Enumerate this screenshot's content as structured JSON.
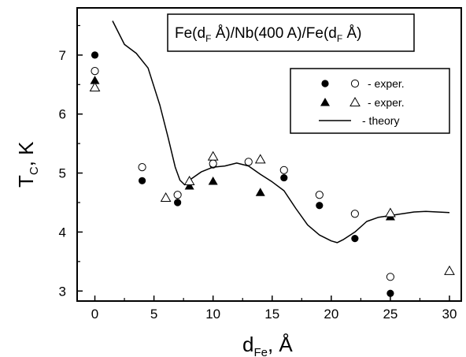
{
  "chart_data": {
    "type": "scatter",
    "title_parts": [
      "Fe(d",
      "F",
      " Å)/Nb(400 A)/Fe(d",
      "F",
      " Å)"
    ],
    "xlabel_parts": [
      "d",
      "Fe",
      ", Å"
    ],
    "ylabel_parts": [
      "T",
      "C",
      ", K"
    ],
    "xlim": [
      -1.5,
      31
    ],
    "ylim": [
      2.83,
      7.8
    ],
    "xticks": [
      0,
      5,
      10,
      15,
      20,
      25,
      30
    ],
    "yticks": [
      3,
      4,
      5,
      6,
      7
    ],
    "legend_position": "top-right",
    "legend": [
      {
        "symbols": [
          "filled-circle",
          "open-circle"
        ],
        "label": "- exper."
      },
      {
        "symbols": [
          "filled-triangle",
          "open-triangle"
        ],
        "label": "- exper."
      },
      {
        "symbols": [
          "line"
        ],
        "label": "-  theory"
      }
    ],
    "series": [
      {
        "marker": "filled-circle",
        "x": [
          0,
          4,
          7,
          10,
          13,
          16,
          19,
          22,
          25
        ],
        "y": [
          7.0,
          4.87,
          4.5,
          5.14,
          5.19,
          4.92,
          4.45,
          3.89,
          2.96
        ]
      },
      {
        "marker": "open-circle",
        "x": [
          0,
          4,
          7,
          10,
          13,
          16,
          19,
          22,
          25
        ],
        "y": [
          6.73,
          5.1,
          4.63,
          5.16,
          5.19,
          5.05,
          4.63,
          4.31,
          3.24
        ]
      },
      {
        "marker": "filled-triangle",
        "x": [
          0,
          8,
          10,
          14,
          25
        ],
        "y": [
          6.57,
          4.78,
          4.86,
          4.67,
          4.26
        ]
      },
      {
        "marker": "open-triangle",
        "x": [
          0,
          6,
          8,
          10,
          14,
          25,
          30
        ],
        "y": [
          6.45,
          4.58,
          4.86,
          5.28,
          5.23,
          4.32,
          3.34
        ]
      },
      {
        "marker": "line",
        "x": [
          1.5,
          2.5,
          3.5,
          4.5,
          5.5,
          6.2,
          6.8,
          7.2,
          7.6,
          8,
          9,
          10,
          11,
          12,
          13,
          14,
          15,
          16,
          17,
          18,
          19,
          20,
          20.5,
          21,
          22,
          23,
          24,
          25,
          26,
          27,
          28,
          29,
          30
        ],
        "y": [
          7.58,
          7.18,
          7.03,
          6.78,
          6.15,
          5.6,
          5.1,
          4.88,
          4.8,
          4.88,
          5.02,
          5.1,
          5.12,
          5.17,
          5.12,
          4.98,
          4.85,
          4.7,
          4.4,
          4.12,
          3.95,
          3.85,
          3.82,
          3.87,
          4.0,
          4.18,
          4.25,
          4.28,
          4.31,
          4.34,
          4.35,
          4.34,
          4.33
        ]
      }
    ]
  }
}
